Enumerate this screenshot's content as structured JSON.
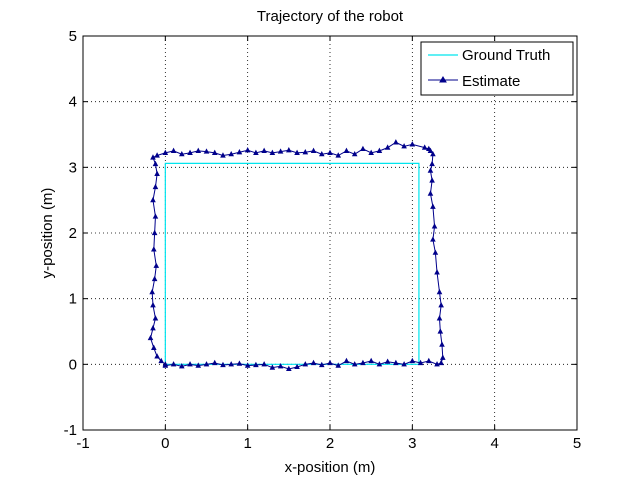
{
  "chart_data": {
    "type": "line",
    "title": "Trajectory of the robot",
    "xlabel": "x-position (m)",
    "ylabel": "y-position (m)",
    "xlim": [
      -1,
      5
    ],
    "ylim": [
      -1,
      5
    ],
    "xticks": [
      -1,
      0,
      1,
      2,
      3,
      4,
      5
    ],
    "yticks": [
      -1,
      0,
      1,
      2,
      3,
      4,
      5
    ],
    "grid": true,
    "legend_position": "top-right",
    "series": [
      {
        "name": "Ground Truth",
        "color": "#00e5ee",
        "marker": "none",
        "x": [
          0,
          0,
          3.08,
          3.08,
          0
        ],
        "y": [
          0,
          3.06,
          3.06,
          0,
          0
        ]
      },
      {
        "name": "Estimate",
        "color": "#00008b",
        "marker": "triangle",
        "x": [
          0.0,
          0.1,
          0.2,
          0.3,
          0.4,
          0.5,
          0.6,
          0.7,
          0.8,
          0.9,
          1.0,
          1.1,
          1.2,
          1.3,
          1.4,
          1.5,
          1.6,
          1.7,
          1.8,
          1.9,
          2.0,
          2.1,
          2.2,
          2.3,
          2.4,
          2.5,
          2.6,
          2.7,
          2.8,
          2.9,
          3.0,
          3.1,
          3.2,
          3.3,
          3.35,
          3.37,
          3.36,
          3.34,
          3.33,
          3.35,
          3.33,
          3.3,
          3.28,
          3.25,
          3.27,
          3.25,
          3.22,
          3.24,
          3.22,
          3.24,
          3.25,
          3.22,
          3.2,
          3.15,
          3.0,
          2.9,
          2.8,
          2.7,
          2.6,
          2.5,
          2.4,
          2.3,
          2.2,
          2.1,
          2.0,
          1.9,
          1.8,
          1.7,
          1.6,
          1.5,
          1.4,
          1.3,
          1.2,
          1.1,
          1.0,
          0.9,
          0.8,
          0.7,
          0.6,
          0.5,
          0.4,
          0.3,
          0.2,
          0.1,
          0.0,
          -0.1,
          -0.15,
          -0.12,
          -0.1,
          -0.12,
          -0.15,
          -0.12,
          -0.13,
          -0.14,
          -0.11,
          -0.13,
          -0.16,
          -0.15,
          -0.12,
          -0.15,
          -0.18,
          -0.14,
          -0.1,
          -0.05,
          0.0
        ],
        "y": [
          -0.02,
          0.0,
          -0.03,
          0.0,
          -0.02,
          0.0,
          0.02,
          -0.01,
          0.0,
          0.01,
          -0.02,
          -0.01,
          0.0,
          -0.05,
          -0.03,
          -0.07,
          -0.04,
          0.0,
          0.02,
          -0.01,
          0.02,
          -0.02,
          0.05,
          0.0,
          0.02,
          0.05,
          0.0,
          0.04,
          0.02,
          0.0,
          0.05,
          0.02,
          0.05,
          0.0,
          0.02,
          0.1,
          0.3,
          0.5,
          0.7,
          0.9,
          1.1,
          1.4,
          1.7,
          1.9,
          2.1,
          2.4,
          2.6,
          2.8,
          2.95,
          3.05,
          3.2,
          3.25,
          3.28,
          3.3,
          3.35,
          3.32,
          3.38,
          3.3,
          3.25,
          3.22,
          3.28,
          3.2,
          3.25,
          3.18,
          3.22,
          3.2,
          3.25,
          3.23,
          3.22,
          3.26,
          3.24,
          3.22,
          3.25,
          3.22,
          3.26,
          3.23,
          3.2,
          3.18,
          3.22,
          3.24,
          3.25,
          3.22,
          3.2,
          3.25,
          3.22,
          3.18,
          3.15,
          3.05,
          2.9,
          2.7,
          2.5,
          2.25,
          2.0,
          1.75,
          1.5,
          1.3,
          1.1,
          0.9,
          0.7,
          0.55,
          0.4,
          0.25,
          0.12,
          0.05,
          0.0
        ]
      }
    ]
  }
}
